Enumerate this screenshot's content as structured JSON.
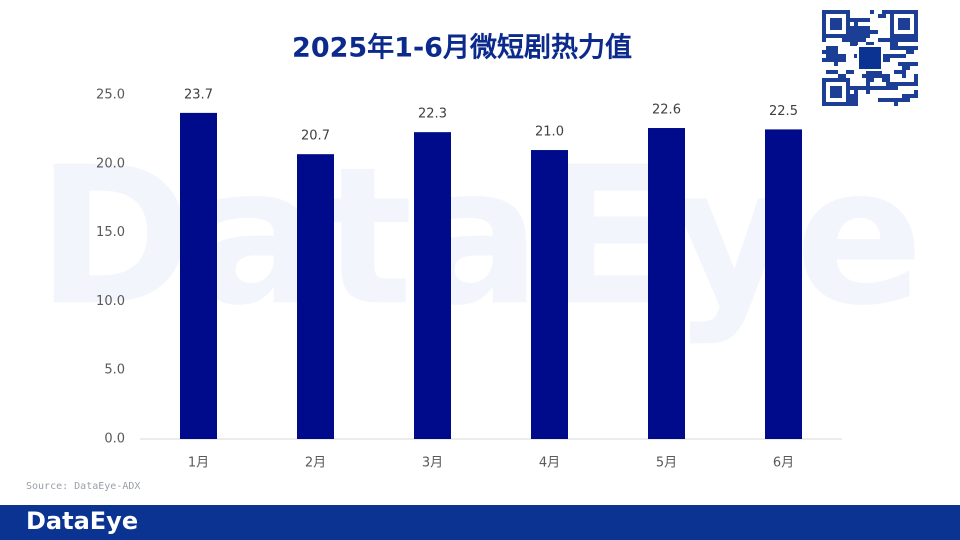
{
  "chart_data": {
    "type": "bar",
    "title": "2025年1-6月微短剧热力值",
    "categories": [
      "1月",
      "2月",
      "3月",
      "4月",
      "5月",
      "6月"
    ],
    "values": [
      23.7,
      20.7,
      22.3,
      21.0,
      22.6,
      22.5
    ],
    "value_labels": [
      "23.7",
      "20.7",
      "22.3",
      "21.0",
      "22.6",
      "22.5"
    ],
    "color": "#000b8c",
    "ylim": [
      0,
      25
    ],
    "yticks": [
      {
        "value": 0,
        "label": "0.0"
      },
      {
        "value": 5,
        "label": "5.0"
      },
      {
        "value": 10,
        "label": "10.0"
      },
      {
        "value": 15,
        "label": "15.0"
      },
      {
        "value": 20,
        "label": "20.0"
      },
      {
        "value": 25,
        "label": "25.0"
      }
    ],
    "grid": false,
    "source": "Source: DataEye-ADX",
    "watermark": "DataEye",
    "brand": "DataEye"
  }
}
